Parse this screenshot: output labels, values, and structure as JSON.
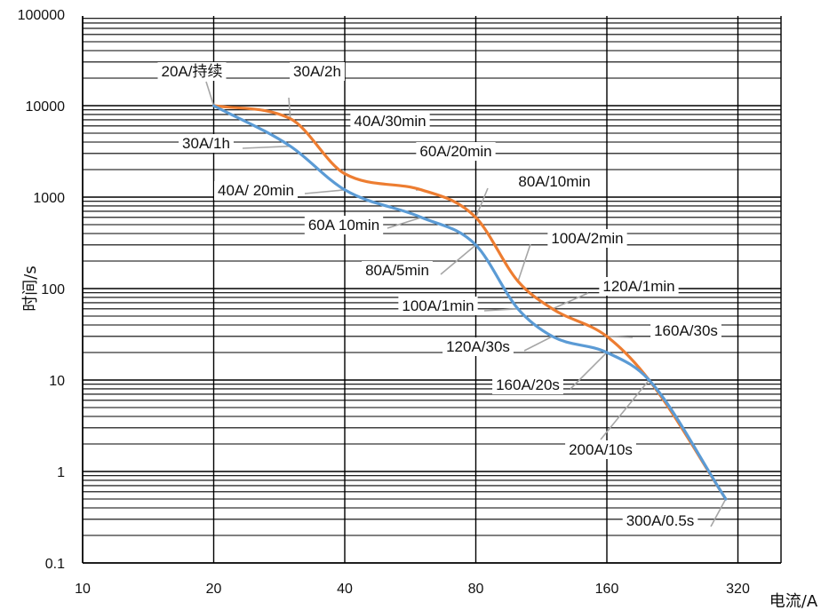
{
  "chart_data": {
    "type": "line",
    "xscale": "log",
    "yscale": "log",
    "xlim": [
      10,
      400
    ],
    "ylim": [
      0.1,
      100000
    ],
    "grid": true,
    "xticks": [
      10,
      20,
      40,
      80,
      160,
      320
    ],
    "xtick_labels": [
      "10",
      "20",
      "40",
      "80",
      "160",
      "320"
    ],
    "yticks": [
      0.1,
      1,
      10,
      100,
      1000,
      10000,
      100000
    ],
    "ytick_labels": [
      "0.1",
      "1",
      "10",
      "100",
      "1000",
      "10000",
      "100000"
    ],
    "xlabel": "电流/A",
    "ylabel": "时间/s",
    "colors": {
      "series_1": "#ed7d31",
      "series_2": "#5b9bd5",
      "grid": "#000000",
      "leader": "#a6a6a6"
    },
    "series": [
      {
        "color": "#ed7d31",
        "points": [
          [
            20,
            10000
          ],
          [
            30,
            7200
          ],
          [
            40,
            1800
          ],
          [
            60,
            1200
          ],
          [
            80,
            600
          ],
          [
            100,
            120
          ],
          [
            120,
            60
          ],
          [
            160,
            30
          ],
          [
            200,
            10
          ],
          [
            300,
            0.5
          ]
        ]
      },
      {
        "color": "#5b9bd5",
        "points": [
          [
            20,
            10000
          ],
          [
            30,
            3600
          ],
          [
            40,
            1200
          ],
          [
            60,
            600
          ],
          [
            80,
            300
          ],
          [
            100,
            60
          ],
          [
            120,
            30
          ],
          [
            160,
            20
          ],
          [
            200,
            10
          ],
          [
            300,
            0.5
          ]
        ]
      }
    ],
    "annotations": [
      {
        "text": "20A/持续",
        "x": 20,
        "y": 10000,
        "series": 0
      },
      {
        "text": "30A/2h",
        "x": 30,
        "y": 7200,
        "series": 0
      },
      {
        "text": "40A/30min",
        "x": 40,
        "y": 1800,
        "series": 0
      },
      {
        "text": "60A/20min",
        "x": 60,
        "y": 1200,
        "series": 0
      },
      {
        "text": "80A/10min",
        "x": 80,
        "y": 600,
        "series": 0
      },
      {
        "text": "100A/2min",
        "x": 100,
        "y": 120,
        "series": 0
      },
      {
        "text": "120A/1min",
        "x": 120,
        "y": 60,
        "series": 0
      },
      {
        "text": "160A/30s",
        "x": 160,
        "y": 30,
        "series": 0
      },
      {
        "text": "30A/1h",
        "x": 30,
        "y": 3600,
        "series": 1
      },
      {
        "text": "40A/ 20min",
        "x": 40,
        "y": 1200,
        "series": 1
      },
      {
        "text": "60A 10min",
        "x": 60,
        "y": 600,
        "series": 1
      },
      {
        "text": "80A/5min",
        "x": 80,
        "y": 300,
        "series": 1
      },
      {
        "text": "100A/1min",
        "x": 100,
        "y": 60,
        "series": 1
      },
      {
        "text": "120A/30s",
        "x": 120,
        "y": 30,
        "series": 1
      },
      {
        "text": "160A/20s",
        "x": 160,
        "y": 20,
        "series": 1
      },
      {
        "text": "200A/10s",
        "x": 200,
        "y": 10,
        "series": 1
      },
      {
        "text": "300A/0.5s",
        "x": 300,
        "y": 0.5,
        "series": 1
      }
    ]
  }
}
